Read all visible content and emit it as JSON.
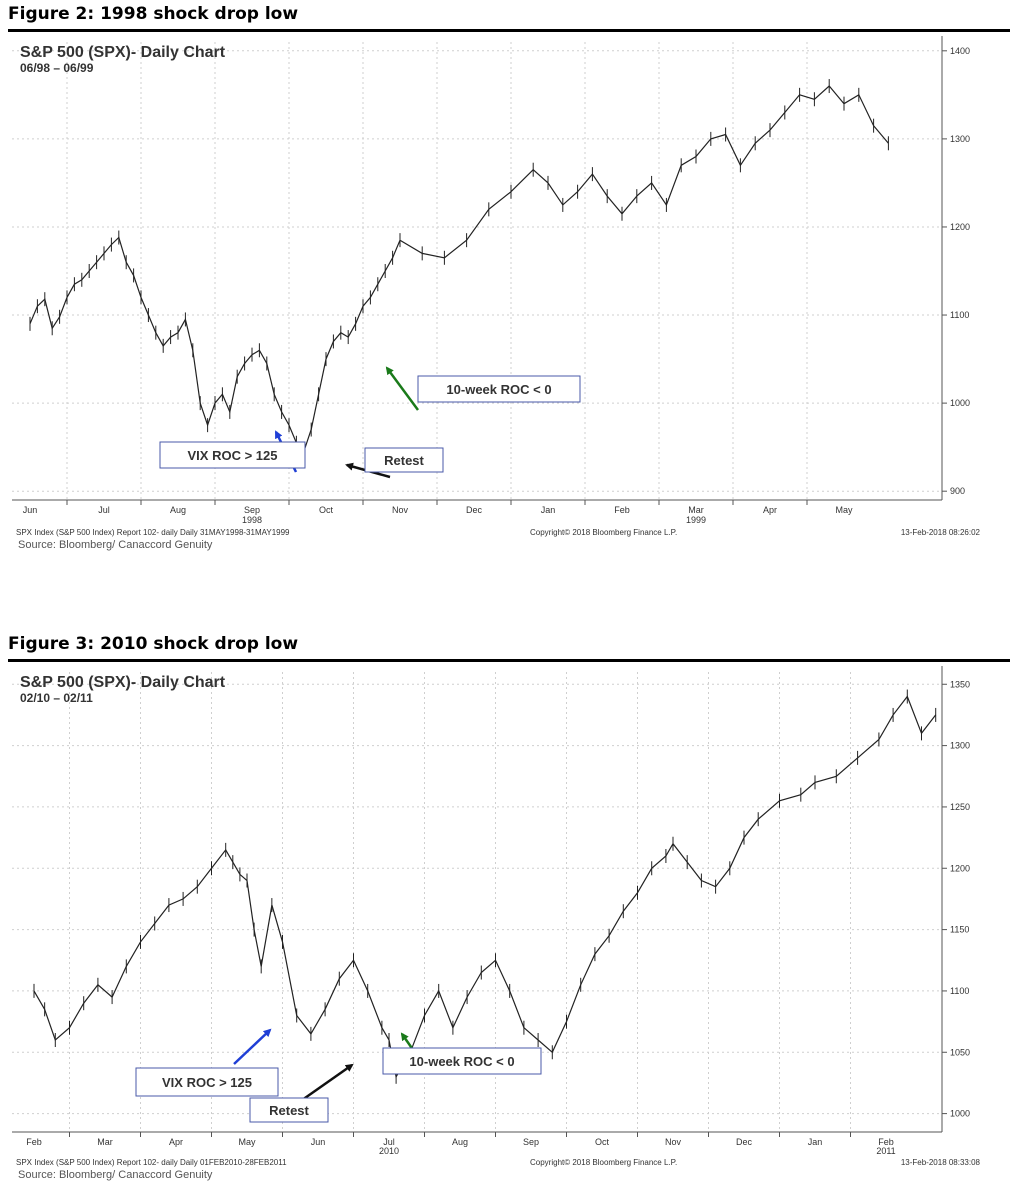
{
  "figures": [
    {
      "heading": "Figure 2: 1998 shock drop low",
      "source": "Source: Bloomberg/ Canaccord Genuity",
      "chart_data": {
        "type": "line",
        "title": "S&P 500 (SPX)- Daily Chart",
        "subtitle": "06/98 – 06/99",
        "xlabel": "",
        "ylabel": "",
        "ylim": [
          890,
          1410
        ],
        "yticks": [
          900,
          1000,
          1100,
          1200,
          1300,
          1400
        ],
        "ytick_labels": [
          "900",
          "1000",
          "1100",
          "1200",
          "1300",
          "1400"
        ],
        "x_months": [
          "Jun",
          "Jul",
          "Aug",
          "Sep",
          "Oct",
          "Nov",
          "Dec",
          "Jan",
          "Feb",
          "Mar",
          "Apr",
          "May"
        ],
        "year_labels": [
          {
            "month_index": 3,
            "label": "1998"
          },
          {
            "month_index": 9,
            "label": "1999"
          }
        ],
        "x": [
          0,
          0.1,
          0.2,
          0.3,
          0.4,
          0.5,
          0.6,
          0.7,
          0.8,
          0.9,
          1.0,
          1.1,
          1.2,
          1.3,
          1.4,
          1.5,
          1.6,
          1.7,
          1.8,
          1.9,
          2.0,
          2.1,
          2.2,
          2.3,
          2.4,
          2.5,
          2.6,
          2.7,
          2.8,
          2.9,
          3.0,
          3.1,
          3.2,
          3.3,
          3.4,
          3.5,
          3.6,
          3.7,
          3.8,
          3.9,
          4.0,
          4.1,
          4.2,
          4.3,
          4.4,
          4.5,
          4.6,
          4.7,
          4.8,
          4.9,
          5.0,
          5.3,
          5.6,
          5.9,
          6.2,
          6.5,
          6.8,
          7.0,
          7.2,
          7.4,
          7.6,
          7.8,
          8.0,
          8.2,
          8.4,
          8.6,
          8.8,
          9.0,
          9.2,
          9.4,
          9.6,
          9.8,
          10.0,
          10.2,
          10.4,
          10.6,
          10.8,
          11.0,
          11.2,
          11.4,
          11.6
        ],
        "series": [
          {
            "values": [
              1090,
              1110,
              1118,
              1085,
              1098,
              1120,
              1135,
              1140,
              1150,
              1160,
              1170,
              1180,
              1188,
              1160,
              1145,
              1120,
              1100,
              1080,
              1065,
              1075,
              1080,
              1095,
              1060,
              1000,
              975,
              1000,
              1010,
              990,
              1030,
              1045,
              1055,
              1060,
              1045,
              1010,
              990,
              975,
              955,
              945,
              970,
              1010,
              1050,
              1070,
              1080,
              1075,
              1090,
              1110,
              1120,
              1135,
              1150,
              1165,
              1185,
              1170,
              1165,
              1185,
              1220,
              1240,
              1265,
              1250,
              1225,
              1240,
              1260,
              1235,
              1215,
              1235,
              1250,
              1225,
              1270,
              1280,
              1300,
              1305,
              1270,
              1295,
              1310,
              1330,
              1350,
              1345,
              1360,
              1340,
              1350,
              1315,
              1295
            ]
          }
        ],
        "annotations": [
          {
            "label": "VIX ROC > 125"
          },
          {
            "label": "Retest"
          },
          {
            "label": "10-week ROC < 0"
          }
        ]
      },
      "footer_left": "SPX Index (S&P 500 Index) Report 102- daily  Daily 31MAY1998-31MAY1999",
      "footer_mid": "Copyright© 2018 Bloomberg Finance L.P.",
      "footer_right": "13-Feb-2018 08:26:02",
      "colors": {
        "vix_arrow": "#1f3fd6",
        "retest_arrow": "#111111",
        "roc_arrow": "#1a7a1a",
        "box_border": "#4a5aa8"
      }
    },
    {
      "heading": "Figure 3: 2010 shock drop low",
      "source": "Source: Bloomberg/ Canaccord Genuity",
      "chart_data": {
        "type": "line",
        "title": "S&P 500 (SPX)- Daily Chart",
        "subtitle": "02/10 – 02/11",
        "xlabel": "",
        "ylabel": "",
        "ylim": [
          985,
          1360
        ],
        "yticks": [
          1000,
          1050,
          1100,
          1150,
          1200,
          1250,
          1300,
          1350
        ],
        "ytick_labels": [
          "1000",
          "1050",
          "1100",
          "1150",
          "1200",
          "1250",
          "1300",
          "1350"
        ],
        "x_months": [
          "Feb",
          "Mar",
          "Apr",
          "May",
          "Jun",
          "Jul",
          "Aug",
          "Sep",
          "Oct",
          "Nov",
          "Dec",
          "Jan",
          "Feb"
        ],
        "year_labels": [
          {
            "month_index": 5,
            "label": "2010"
          },
          {
            "month_index": 12,
            "label": "2011"
          }
        ],
        "x": [
          0,
          0.15,
          0.3,
          0.5,
          0.7,
          0.9,
          1.1,
          1.3,
          1.5,
          1.7,
          1.9,
          2.1,
          2.3,
          2.5,
          2.7,
          2.8,
          2.9,
          3.0,
          3.1,
          3.2,
          3.35,
          3.5,
          3.7,
          3.9,
          4.1,
          4.3,
          4.5,
          4.7,
          4.9,
          5.0,
          5.1,
          5.3,
          5.5,
          5.7,
          5.9,
          6.1,
          6.3,
          6.5,
          6.7,
          6.9,
          7.1,
          7.3,
          7.5,
          7.7,
          7.9,
          8.1,
          8.3,
          8.5,
          8.7,
          8.9,
          9.0,
          9.2,
          9.4,
          9.6,
          9.8,
          10.0,
          10.2,
          10.5,
          10.8,
          11.0,
          11.3,
          11.6,
          11.9,
          12.1,
          12.3,
          12.5,
          12.7
        ],
        "series": [
          {
            "values": [
              1100,
              1085,
              1060,
              1070,
              1090,
              1105,
              1095,
              1120,
              1140,
              1155,
              1170,
              1175,
              1185,
              1200,
              1215,
              1205,
              1195,
              1190,
              1150,
              1120,
              1170,
              1140,
              1080,
              1065,
              1085,
              1110,
              1125,
              1100,
              1070,
              1060,
              1030,
              1050,
              1080,
              1100,
              1070,
              1095,
              1115,
              1125,
              1100,
              1070,
              1060,
              1050,
              1075,
              1105,
              1130,
              1145,
              1165,
              1180,
              1200,
              1210,
              1220,
              1205,
              1190,
              1185,
              1200,
              1225,
              1240,
              1255,
              1260,
              1270,
              1275,
              1290,
              1305,
              1325,
              1340,
              1310,
              1325
            ]
          }
        ],
        "annotations": [
          {
            "label": "VIX ROC > 125"
          },
          {
            "label": "Retest"
          },
          {
            "label": "10-week ROC < 0"
          }
        ]
      },
      "footer_left": "SPX Index (S&P 500 Index) Report 102- daily  Daily 01FEB2010-28FEB2011",
      "footer_mid": "Copyright© 2018 Bloomberg Finance L.P.",
      "footer_right": "13-Feb-2018 08:33:08",
      "colors": {
        "vix_arrow": "#1f3fd6",
        "retest_arrow": "#111111",
        "roc_arrow": "#1a7a1a",
        "box_border": "#4a5aa8"
      }
    }
  ]
}
